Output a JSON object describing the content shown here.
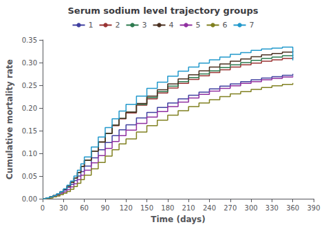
{
  "chart_data": {
    "type": "line",
    "title": "Serum sodium level trajectory groups",
    "xlabel": "Time (days)",
    "ylabel": "Cumulative mortality rate",
    "xlim": [
      0,
      390
    ],
    "ylim": [
      0.0,
      0.35
    ],
    "xticks": [
      0,
      30,
      60,
      90,
      120,
      150,
      180,
      210,
      240,
      270,
      300,
      330,
      360,
      390
    ],
    "yticks": [
      {
        "value": 0.0,
        "label": "0.00"
      },
      {
        "value": 0.05,
        "label": "0.05"
      },
      {
        "value": 0.1,
        "label": "0.10"
      },
      {
        "value": 0.15,
        "label": "0.15"
      },
      {
        "value": 0.2,
        "label": "0.20"
      },
      {
        "value": 0.25,
        "label": "0.25"
      },
      {
        "value": 0.3,
        "label": "0.30"
      },
      {
        "value": 0.35,
        "label": "0.35"
      }
    ],
    "grid": false,
    "legend": "top",
    "line_style": "steps",
    "x": [
      0,
      5,
      10,
      15,
      20,
      25,
      30,
      35,
      40,
      45,
      50,
      55,
      60,
      70,
      80,
      90,
      100,
      110,
      120,
      135,
      150,
      165,
      180,
      195,
      210,
      225,
      240,
      255,
      270,
      285,
      300,
      315,
      330,
      345,
      360
    ],
    "series": [
      {
        "name": "1",
        "color": "#4040a0",
        "values": [
          0.0,
          0.002,
          0.004,
          0.007,
          0.01,
          0.014,
          0.019,
          0.025,
          0.032,
          0.04,
          0.05,
          0.06,
          0.072,
          0.09,
          0.108,
          0.124,
          0.139,
          0.152,
          0.163,
          0.178,
          0.19,
          0.201,
          0.211,
          0.22,
          0.228,
          0.235,
          0.242,
          0.248,
          0.253,
          0.258,
          0.262,
          0.266,
          0.269,
          0.272,
          0.275
        ]
      },
      {
        "name": "2",
        "color": "#993333",
        "values": [
          0.0,
          0.002,
          0.004,
          0.007,
          0.01,
          0.015,
          0.021,
          0.028,
          0.036,
          0.046,
          0.058,
          0.071,
          0.085,
          0.105,
          0.125,
          0.144,
          0.161,
          0.176,
          0.189,
          0.206,
          0.22,
          0.233,
          0.244,
          0.254,
          0.263,
          0.271,
          0.278,
          0.284,
          0.29,
          0.295,
          0.299,
          0.303,
          0.306,
          0.309,
          0.312
        ]
      },
      {
        "name": "3",
        "color": "#2d7a4f",
        "values": [
          0.0,
          0.002,
          0.004,
          0.007,
          0.01,
          0.015,
          0.021,
          0.028,
          0.036,
          0.046,
          0.058,
          0.071,
          0.085,
          0.105,
          0.125,
          0.144,
          0.162,
          0.177,
          0.191,
          0.208,
          0.223,
          0.236,
          0.248,
          0.258,
          0.267,
          0.275,
          0.282,
          0.289,
          0.295,
          0.3,
          0.305,
          0.309,
          0.312,
          0.315,
          0.317
        ]
      },
      {
        "name": "4",
        "color": "#4a3020",
        "values": [
          0.0,
          0.002,
          0.004,
          0.007,
          0.01,
          0.015,
          0.021,
          0.028,
          0.036,
          0.046,
          0.058,
          0.071,
          0.085,
          0.105,
          0.125,
          0.144,
          0.162,
          0.177,
          0.191,
          0.21,
          0.226,
          0.24,
          0.253,
          0.264,
          0.273,
          0.282,
          0.29,
          0.297,
          0.303,
          0.308,
          0.313,
          0.317,
          0.32,
          0.323,
          0.325
        ]
      },
      {
        "name": "5",
        "color": "#9030a0",
        "values": [
          0.0,
          0.001,
          0.003,
          0.005,
          0.007,
          0.011,
          0.015,
          0.02,
          0.026,
          0.033,
          0.042,
          0.052,
          0.063,
          0.079,
          0.095,
          0.111,
          0.126,
          0.139,
          0.151,
          0.166,
          0.18,
          0.192,
          0.203,
          0.213,
          0.222,
          0.23,
          0.237,
          0.243,
          0.249,
          0.254,
          0.258,
          0.262,
          0.265,
          0.268,
          0.27
        ]
      },
      {
        "name": "6",
        "color": "#808020",
        "values": [
          0.0,
          0.001,
          0.002,
          0.004,
          0.006,
          0.009,
          0.012,
          0.016,
          0.021,
          0.027,
          0.034,
          0.042,
          0.052,
          0.066,
          0.08,
          0.094,
          0.108,
          0.121,
          0.132,
          0.147,
          0.161,
          0.173,
          0.184,
          0.194,
          0.203,
          0.211,
          0.218,
          0.225,
          0.231,
          0.236,
          0.241,
          0.245,
          0.249,
          0.252,
          0.255
        ]
      },
      {
        "name": "7",
        "color": "#2299cc",
        "values": [
          0.0,
          0.002,
          0.004,
          0.007,
          0.011,
          0.016,
          0.022,
          0.03,
          0.039,
          0.05,
          0.063,
          0.077,
          0.092,
          0.114,
          0.136,
          0.157,
          0.176,
          0.193,
          0.208,
          0.226,
          0.243,
          0.257,
          0.27,
          0.281,
          0.29,
          0.299,
          0.306,
          0.312,
          0.318,
          0.322,
          0.327,
          0.33,
          0.332,
          0.334,
          0.305
        ]
      }
    ]
  }
}
